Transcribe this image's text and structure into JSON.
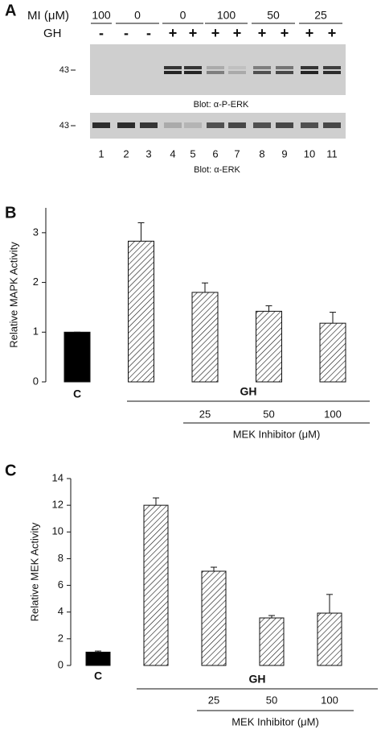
{
  "blot": {
    "panel_label": "A",
    "mi_label": "MI (μM)",
    "mi_values": [
      "100",
      "0",
      "0",
      "100",
      "50",
      "25"
    ],
    "gh_label": "GH",
    "gh_signs": [
      "-",
      "-",
      "-",
      "+",
      "+",
      "+",
      "+",
      "+",
      "+",
      "+",
      "+"
    ],
    "size_markers": [
      "43",
      "43"
    ],
    "blot1_label": "Blot: α-P-ERK",
    "blot2_label": "Blot: α-ERK",
    "lanes": [
      "1",
      "2",
      "3",
      "4",
      "5",
      "6",
      "7",
      "8",
      "9",
      "10",
      "11"
    ]
  },
  "chart_data": [
    {
      "type": "bar",
      "panel_label": "B",
      "y_label": "Relative MAPK Activity",
      "categories": [
        "C",
        null,
        "25",
        "50",
        "100"
      ],
      "values": [
        1.0,
        2.83,
        1.8,
        1.42,
        1.18
      ],
      "errors": [
        0,
        0.37,
        0.19,
        0.11,
        0.22
      ],
      "colors": [
        "#000000",
        "#ffffff",
        "#ffffff",
        "#ffffff",
        "#ffffff"
      ],
      "hatch": [
        false,
        true,
        true,
        true,
        true
      ],
      "group_label": "GH",
      "subgroup_label": "MEK Inhibitor (μM)",
      "ylim": [
        0,
        3.5
      ],
      "yticks": [
        0,
        1,
        2,
        3
      ]
    },
    {
      "type": "bar",
      "panel_label": "C",
      "y_label": "Relative MEK Activity",
      "categories": [
        "C",
        null,
        "25",
        "50",
        "100"
      ],
      "values": [
        1.0,
        12.0,
        7.06,
        3.56,
        3.92
      ],
      "errors": [
        0.08,
        0.55,
        0.3,
        0.18,
        1.4
      ],
      "colors": [
        "#000000",
        "#ffffff",
        "#ffffff",
        "#ffffff",
        "#ffffff"
      ],
      "hatch": [
        false,
        true,
        true,
        true,
        true
      ],
      "group_label": "GH",
      "subgroup_label": "MEK Inhibitor (μM)",
      "ylim": [
        0,
        14
      ],
      "yticks": [
        0,
        2,
        4,
        6,
        8,
        10,
        12,
        14
      ]
    }
  ]
}
